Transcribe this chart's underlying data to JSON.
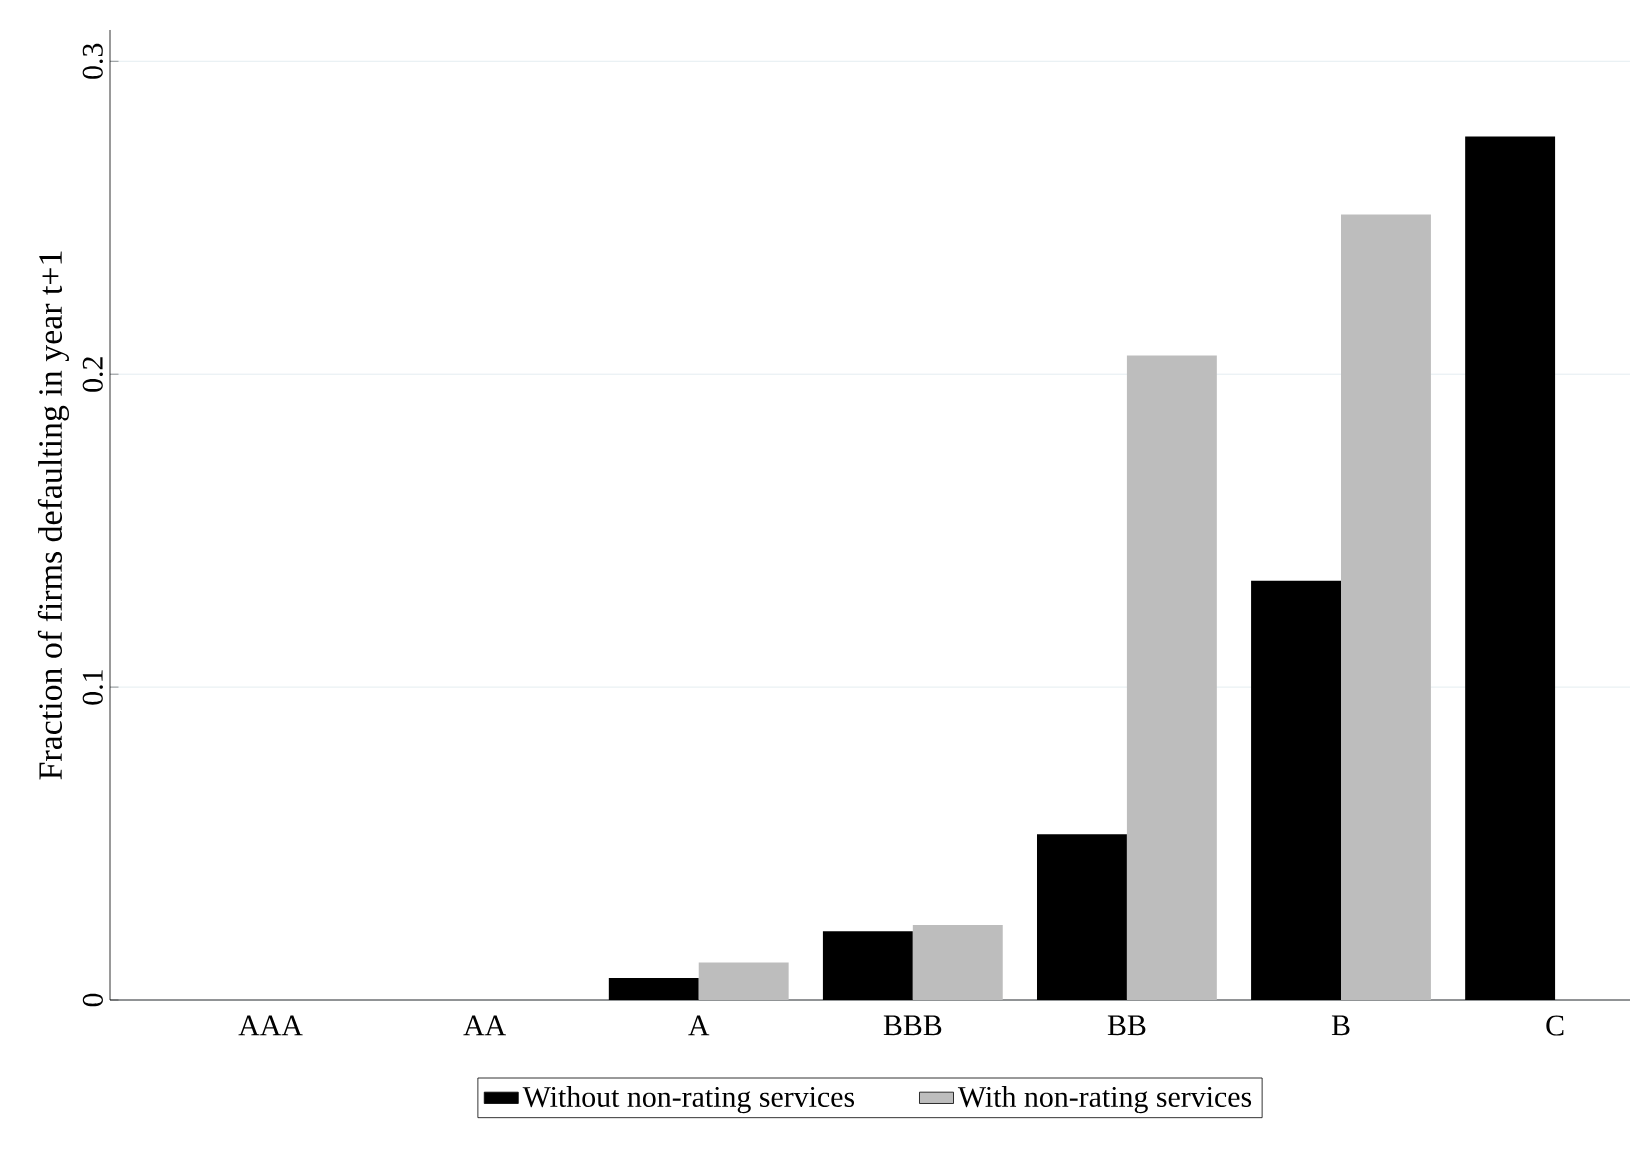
{
  "chart_data": {
    "type": "bar",
    "ylabel": "Fraction of firms defaulting in year t+1",
    "categories": [
      "AAA",
      "AA",
      "A",
      "BBB",
      "BB",
      "B",
      "C"
    ],
    "series": [
      {
        "name": "Without non-rating services",
        "color": "#000000",
        "values": [
          0,
          0,
          0.007,
          0.022,
          0.053,
          0.134,
          0.276
        ]
      },
      {
        "name": "With non-rating services",
        "color": "#bdbdbd",
        "values": [
          0,
          0,
          0.012,
          0.024,
          0.206,
          0.251,
          null
        ]
      }
    ],
    "ylim": [
      0,
      0.31
    ],
    "yticks": [
      0,
      0.1,
      0.2,
      0.3
    ],
    "grid": "y",
    "legend": "bottom"
  }
}
